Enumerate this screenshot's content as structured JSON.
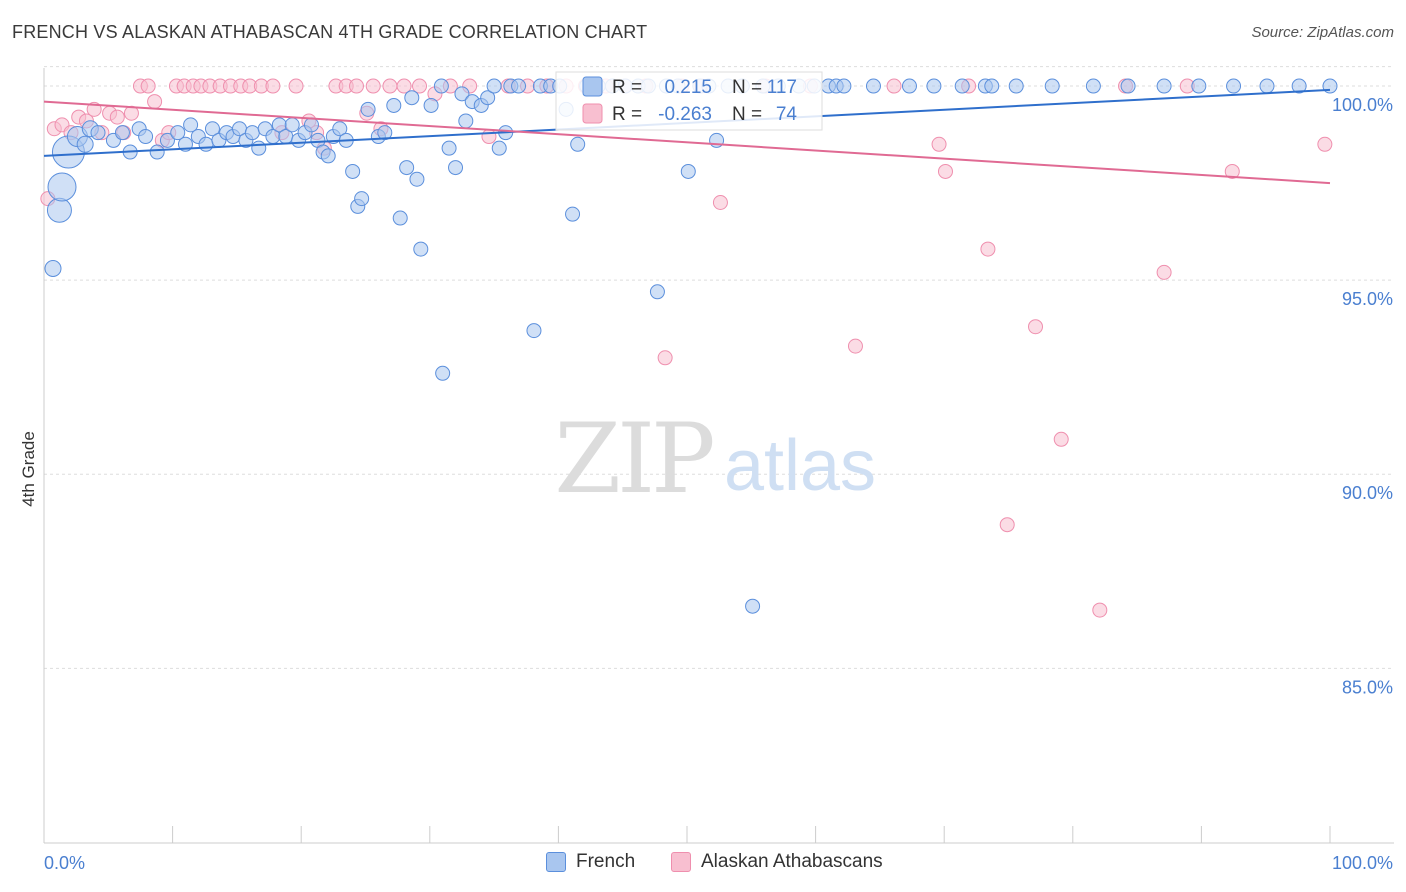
{
  "header": {
    "title": "FRENCH VS ALASKAN ATHABASCAN 4TH GRADE CORRELATION CHART",
    "source": "Source: ZipAtlas.com"
  },
  "watermark": {
    "zip": "ZIP",
    "atlas": "atlas"
  },
  "stats": {
    "r_label": "R =",
    "n_label": "N =",
    "rows": [
      {
        "r": "0.215",
        "n": "117",
        "color": "#4a7fd0"
      },
      {
        "r": "-0.263",
        "n": "74",
        "color": "#e87a9e"
      }
    ]
  },
  "legend": {
    "french": "French",
    "alaskan": "Alaskan Athabascans"
  },
  "colors": {
    "blue_fill": "#a9c6ef",
    "blue_stroke": "#5b8fdc",
    "blue_line": "#2f6fcc",
    "pink_fill": "#f8bfd0",
    "pink_stroke": "#ef8fae",
    "pink_line": "#e06a93",
    "axis_label": "#4a7fd0",
    "grid": "#dddddd"
  },
  "chart_data": {
    "type": "scatter",
    "title": "FRENCH VS ALASKAN ATHABASCAN 4TH GRADE CORRELATION CHART",
    "xlabel": "",
    "ylabel": "4th Grade",
    "xlim": [
      0,
      100
    ],
    "ylim": [
      80.5,
      100.8
    ],
    "x_tick_labels": [
      "0.0%",
      "100.0%"
    ],
    "y_ticks": [
      85,
      90,
      95,
      100
    ],
    "y_tick_labels": [
      "85.0%",
      "90.0%",
      "95.0%",
      "100.0%"
    ],
    "grid": true,
    "legend_position": "bottom",
    "series": [
      {
        "name": "French",
        "r": 0.215,
        "n": 117,
        "trend": {
          "x": [
            0,
            100
          ],
          "y": [
            98.2,
            99.9
          ]
        },
        "points": [
          [
            0.7,
            95.3,
            8
          ],
          [
            1.2,
            96.8,
            12
          ],
          [
            1.4,
            97.4,
            14
          ],
          [
            1.9,
            98.3,
            16
          ],
          [
            2.6,
            98.7,
            10
          ],
          [
            3.2,
            98.5,
            8
          ],
          [
            3.6,
            98.9,
            8
          ],
          [
            4.2,
            98.8,
            7
          ],
          [
            5.4,
            98.6,
            7
          ],
          [
            6.1,
            98.8,
            7
          ],
          [
            6.7,
            98.3,
            7
          ],
          [
            7.4,
            98.9,
            7
          ],
          [
            7.9,
            98.7,
            7
          ],
          [
            8.8,
            98.3,
            7
          ],
          [
            9.6,
            98.6,
            7
          ],
          [
            10.4,
            98.8,
            7
          ],
          [
            11.0,
            98.5,
            7
          ],
          [
            11.4,
            99.0,
            7
          ],
          [
            12.0,
            98.7,
            7
          ],
          [
            12.6,
            98.5,
            7
          ],
          [
            13.1,
            98.9,
            7
          ],
          [
            13.6,
            98.6,
            7
          ],
          [
            14.2,
            98.8,
            7
          ],
          [
            14.7,
            98.7,
            7
          ],
          [
            15.2,
            98.9,
            7
          ],
          [
            15.7,
            98.6,
            7
          ],
          [
            16.2,
            98.8,
            7
          ],
          [
            16.7,
            98.4,
            7
          ],
          [
            17.2,
            98.9,
            7
          ],
          [
            17.8,
            98.7,
            7
          ],
          [
            18.3,
            99.0,
            7
          ],
          [
            18.8,
            98.7,
            7
          ],
          [
            19.3,
            99.0,
            7
          ],
          [
            19.8,
            98.6,
            7
          ],
          [
            20.3,
            98.8,
            7
          ],
          [
            20.8,
            99.0,
            7
          ],
          [
            21.3,
            98.6,
            7
          ],
          [
            21.7,
            98.3,
            7
          ],
          [
            22.1,
            98.2,
            7
          ],
          [
            22.5,
            98.7,
            7
          ],
          [
            23.0,
            98.9,
            7
          ],
          [
            23.5,
            98.6,
            7
          ],
          [
            24.0,
            97.8,
            7
          ],
          [
            24.4,
            96.9,
            7
          ],
          [
            24.7,
            97.1,
            7
          ],
          [
            25.2,
            99.4,
            7
          ],
          [
            26.0,
            98.7,
            7
          ],
          [
            26.5,
            98.8,
            7
          ],
          [
            27.2,
            99.5,
            7
          ],
          [
            27.7,
            96.6,
            7
          ],
          [
            28.2,
            97.9,
            7
          ],
          [
            28.6,
            99.7,
            7
          ],
          [
            29.0,
            97.6,
            7
          ],
          [
            29.3,
            95.8,
            7
          ],
          [
            30.1,
            99.5,
            7
          ],
          [
            30.9,
            100.0,
            7
          ],
          [
            31.0,
            92.6,
            7
          ],
          [
            31.5,
            98.4,
            7
          ],
          [
            32.0,
            97.9,
            7
          ],
          [
            32.5,
            99.8,
            7
          ],
          [
            32.8,
            99.1,
            7
          ],
          [
            33.3,
            99.6,
            7
          ],
          [
            34.0,
            99.5,
            7
          ],
          [
            34.5,
            99.7,
            7
          ],
          [
            35.0,
            100.0,
            7
          ],
          [
            35.4,
            98.4,
            7
          ],
          [
            35.9,
            98.8,
            7
          ],
          [
            36.3,
            100.0,
            7
          ],
          [
            36.9,
            100.0,
            7
          ],
          [
            38.1,
            93.7,
            7
          ],
          [
            38.6,
            100.0,
            7
          ],
          [
            39.4,
            100.0,
            7
          ],
          [
            40.1,
            100.0,
            7
          ],
          [
            40.6,
            99.4,
            7
          ],
          [
            41.1,
            96.7,
            7
          ],
          [
            41.5,
            98.5,
            7
          ],
          [
            42.2,
            100.0,
            7
          ],
          [
            43.1,
            100.0,
            7
          ],
          [
            44.2,
            100.0,
            7
          ],
          [
            45.2,
            100.0,
            7
          ],
          [
            46.2,
            100.0,
            7
          ],
          [
            47.0,
            100.0,
            7
          ],
          [
            47.7,
            94.7,
            7
          ],
          [
            48.4,
            100.0,
            7
          ],
          [
            49.3,
            100.0,
            7
          ],
          [
            50.1,
            97.8,
            7
          ],
          [
            51.0,
            100.0,
            7
          ],
          [
            51.7,
            100.0,
            7
          ],
          [
            52.3,
            98.6,
            7
          ],
          [
            53.2,
            100.0,
            7
          ],
          [
            54.3,
            100.0,
            7
          ],
          [
            55.1,
            86.6,
            7
          ],
          [
            55.9,
            100.0,
            7
          ],
          [
            57.1,
            100.0,
            7
          ],
          [
            58.7,
            100.0,
            7
          ],
          [
            59.9,
            100.0,
            7
          ],
          [
            61.0,
            100.0,
            7
          ],
          [
            61.6,
            100.0,
            7
          ],
          [
            62.2,
            100.0,
            7
          ],
          [
            64.5,
            100.0,
            7
          ],
          [
            67.3,
            100.0,
            7
          ],
          [
            69.2,
            100.0,
            7
          ],
          [
            71.4,
            100.0,
            7
          ],
          [
            73.2,
            100.0,
            7
          ],
          [
            73.7,
            100.0,
            7
          ],
          [
            75.6,
            100.0,
            7
          ],
          [
            78.4,
            100.0,
            7
          ],
          [
            81.6,
            100.0,
            7
          ],
          [
            84.3,
            100.0,
            7
          ],
          [
            87.1,
            100.0,
            7
          ],
          [
            89.8,
            100.0,
            7
          ],
          [
            92.5,
            100.0,
            7
          ],
          [
            95.1,
            100.0,
            7
          ],
          [
            97.6,
            100.0,
            7
          ],
          [
            100.0,
            100.0,
            7
          ]
        ]
      },
      {
        "name": "Alaskan Athabascans",
        "r": -0.263,
        "n": 74,
        "trend": {
          "x": [
            0,
            100
          ],
          "y": [
            99.6,
            97.5
          ]
        },
        "points": [
          [
            0.3,
            97.1,
            7
          ],
          [
            0.8,
            98.9,
            7
          ],
          [
            1.4,
            99.0,
            7
          ],
          [
            2.1,
            98.8,
            7
          ],
          [
            2.7,
            99.2,
            7
          ],
          [
            3.3,
            99.1,
            7
          ],
          [
            3.9,
            99.4,
            7
          ],
          [
            4.5,
            98.8,
            7
          ],
          [
            5.1,
            99.3,
            7
          ],
          [
            5.7,
            99.2,
            7
          ],
          [
            6.2,
            98.8,
            7
          ],
          [
            6.8,
            99.3,
            7
          ],
          [
            7.5,
            100.0,
            7
          ],
          [
            8.1,
            100.0,
            7
          ],
          [
            8.6,
            99.6,
            7
          ],
          [
            9.2,
            98.6,
            7
          ],
          [
            9.7,
            98.8,
            7
          ],
          [
            10.3,
            100.0,
            7
          ],
          [
            10.9,
            100.0,
            7
          ],
          [
            11.6,
            100.0,
            7
          ],
          [
            12.2,
            100.0,
            7
          ],
          [
            12.9,
            100.0,
            7
          ],
          [
            13.7,
            100.0,
            7
          ],
          [
            14.5,
            100.0,
            7
          ],
          [
            15.3,
            100.0,
            7
          ],
          [
            16.0,
            100.0,
            7
          ],
          [
            16.9,
            100.0,
            7
          ],
          [
            17.8,
            100.0,
            7
          ],
          [
            18.5,
            98.8,
            7
          ],
          [
            19.6,
            100.0,
            7
          ],
          [
            20.6,
            99.1,
            7
          ],
          [
            21.2,
            98.8,
            7
          ],
          [
            21.8,
            98.4,
            7
          ],
          [
            22.7,
            100.0,
            7
          ],
          [
            23.5,
            100.0,
            7
          ],
          [
            24.3,
            100.0,
            7
          ],
          [
            25.1,
            99.3,
            7
          ],
          [
            25.6,
            100.0,
            7
          ],
          [
            26.2,
            98.9,
            7
          ],
          [
            26.9,
            100.0,
            7
          ],
          [
            28.0,
            100.0,
            7
          ],
          [
            29.2,
            100.0,
            7
          ],
          [
            30.4,
            99.8,
            7
          ],
          [
            31.6,
            100.0,
            7
          ],
          [
            33.1,
            100.0,
            7
          ],
          [
            34.6,
            98.7,
            7
          ],
          [
            36.1,
            100.0,
            7
          ],
          [
            37.6,
            100.0,
            7
          ],
          [
            39.1,
            100.0,
            7
          ],
          [
            40.6,
            100.0,
            7
          ],
          [
            42.1,
            100.0,
            7
          ],
          [
            43.7,
            100.0,
            7
          ],
          [
            45.2,
            100.0,
            7
          ],
          [
            46.8,
            100.0,
            7
          ],
          [
            48.3,
            93.0,
            7
          ],
          [
            49.6,
            100.0,
            7
          ],
          [
            51.1,
            100.0,
            7
          ],
          [
            52.6,
            97.0,
            7
          ],
          [
            56.1,
            100.0,
            7
          ],
          [
            59.6,
            100.0,
            7
          ],
          [
            63.1,
            93.3,
            7
          ],
          [
            66.1,
            100.0,
            7
          ],
          [
            69.6,
            98.5,
            7
          ],
          [
            70.1,
            97.8,
            7
          ],
          [
            71.9,
            100.0,
            7
          ],
          [
            73.4,
            95.8,
            7
          ],
          [
            74.9,
            88.7,
            7
          ],
          [
            77.1,
            93.8,
            7
          ],
          [
            79.1,
            90.9,
            7
          ],
          [
            82.1,
            86.5,
            7
          ],
          [
            84.1,
            100.0,
            7
          ],
          [
            87.1,
            95.2,
            7
          ],
          [
            88.9,
            100.0,
            7
          ],
          [
            92.4,
            97.8,
            7
          ],
          [
            99.6,
            98.5,
            7
          ]
        ]
      }
    ]
  }
}
